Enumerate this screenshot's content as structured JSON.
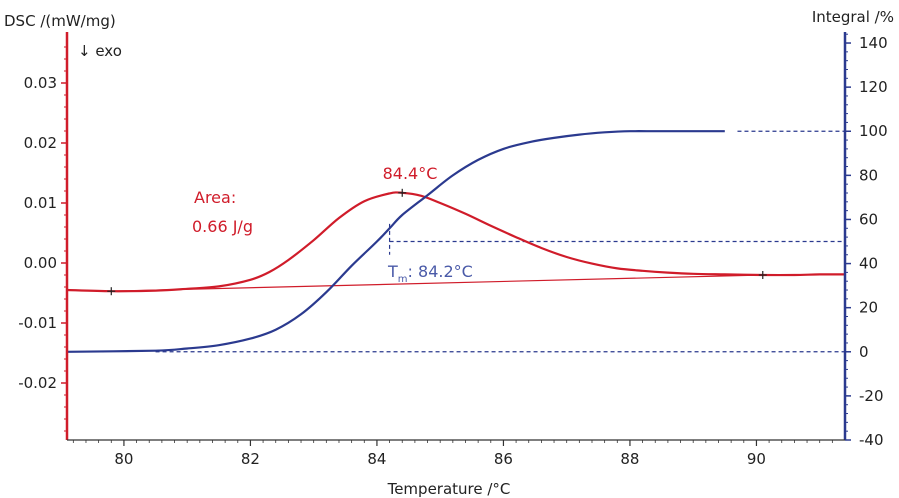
{
  "chart_data": {
    "type": "line",
    "left_axis": {
      "label": "DSC /(mW/mg)",
      "direction_note": "↓ exo",
      "ticks": [
        0.03,
        0.02,
        0.01,
        0.0,
        -0.01,
        -0.02
      ],
      "tick_labels": [
        "0.03",
        "0.02",
        "0.01",
        "0.00",
        "-0.01",
        "-0.02"
      ],
      "range": [
        -0.0295,
        0.0385
      ],
      "color": "#d01c2a"
    },
    "right_axis": {
      "label": "Integral /%",
      "ticks": [
        140,
        120,
        100,
        80,
        60,
        40,
        20,
        0,
        -20,
        -40
      ],
      "tick_labels": [
        "140",
        "120",
        "100",
        "80",
        "60",
        "40",
        "20",
        "0",
        "-20",
        "-40"
      ],
      "range": [
        -40,
        145
      ],
      "color": "#2b3a8f"
    },
    "x_axis": {
      "label": "Temperature /°C",
      "ticks": [
        80,
        82,
        84,
        86,
        88,
        90
      ],
      "tick_labels": [
        "80",
        "82",
        "84",
        "86",
        "88",
        "90"
      ],
      "range": [
        79.1,
        91.4
      ]
    },
    "series": [
      {
        "name": "DSC",
        "axis": "left",
        "color": "#d01c2a",
        "x": [
          79.1,
          79.8,
          80.5,
          81.0,
          81.5,
          82.0,
          82.3,
          82.6,
          83.0,
          83.4,
          83.8,
          84.2,
          84.4,
          84.7,
          85.0,
          85.4,
          85.8,
          86.2,
          86.6,
          87.0,
          87.4,
          87.8,
          88.2,
          88.6,
          89.0,
          89.5,
          90.1,
          90.6,
          91.0,
          91.4
        ],
        "values": [
          -0.0045,
          -0.0047,
          -0.0046,
          -0.0043,
          -0.0039,
          -0.0028,
          -0.0015,
          0.0005,
          0.0038,
          0.0075,
          0.0103,
          0.0116,
          0.0117,
          0.0112,
          0.01,
          0.0082,
          0.0062,
          0.0043,
          0.0025,
          0.001,
          -0.0001,
          -0.0009,
          -0.0013,
          -0.0016,
          -0.0018,
          -0.0019,
          -0.002,
          -0.002,
          -0.0019,
          -0.0019
        ]
      },
      {
        "name": "Integral",
        "axis": "right",
        "color": "#2b3a8f",
        "x": [
          79.1,
          80.5,
          81.0,
          81.5,
          82.0,
          82.4,
          82.8,
          83.2,
          83.6,
          84.0,
          84.2,
          84.4,
          84.8,
          85.2,
          85.6,
          86.0,
          86.4,
          86.8,
          87.2,
          87.6,
          88.0,
          88.4,
          88.8,
          89.5
        ],
        "values": [
          0,
          0.5,
          1.5,
          3,
          6,
          10,
          17,
          27,
          39,
          50,
          56,
          62,
          71,
          80,
          87,
          92,
          95,
          97,
          98.5,
          99.5,
          100,
          100,
          100,
          100
        ]
      }
    ],
    "baseline": {
      "color": "#d01c2a",
      "from": [
        79.8,
        -0.0047
      ],
      "to": [
        90.1,
        -0.002
      ]
    },
    "markers": [
      {
        "x": 79.8,
        "y": -0.0047
      },
      {
        "x": 84.4,
        "y": 0.0117
      },
      {
        "x": 90.1,
        "y": -0.002
      }
    ],
    "reference_lines": [
      {
        "y": 100,
        "x_from": 89.7,
        "x_to": 91.4,
        "axis": "right"
      },
      {
        "y": 50,
        "x_from": 84.2,
        "x_to": 91.4,
        "axis": "right"
      },
      {
        "y": 0,
        "x_from": 80.5,
        "x_to": 91.4,
        "axis": "right"
      }
    ],
    "tm_marker": {
      "x": 84.2,
      "y_from": 44,
      "y_to": 58,
      "axis": "right"
    },
    "annotations": {
      "peak": "84.4°C",
      "area_label": "Area:",
      "area_value": "0.66 J/g",
      "tm_symbol": "T",
      "tm_sub": "m",
      "tm_value": ": 84.2°C"
    }
  }
}
